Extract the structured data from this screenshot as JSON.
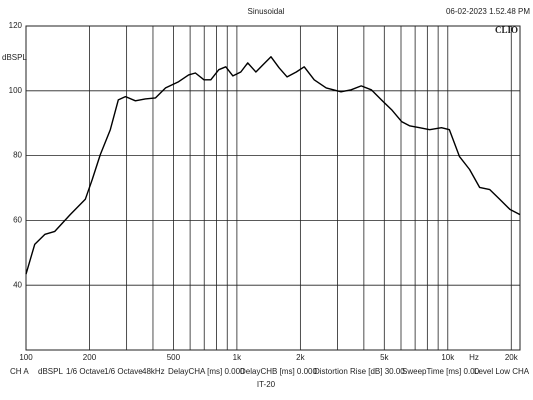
{
  "chart_data": {
    "type": "line",
    "title": "Sinusoidal",
    "timestamp": "06-02-2023 1.52.48 PM",
    "brand": "CLIO",
    "y_label": "dBSPL",
    "x_unit": "Hz",
    "log_x": true,
    "color": "#000000",
    "xlim": [
      100,
      22000
    ],
    "ylim": [
      20,
      120
    ],
    "yticks": [
      40,
      60,
      80,
      100,
      120
    ],
    "xticks": [
      100,
      200,
      500,
      {
        "value": 1000,
        "label": "1k"
      },
      {
        "value": 2000,
        "label": "2k"
      },
      {
        "value": 5000,
        "label": "5k"
      },
      {
        "value": 10000,
        "label": "10k"
      },
      {
        "value": 20000,
        "label": "20k"
      }
    ],
    "xminor_ticks": [
      300,
      400,
      600,
      700,
      800,
      900,
      3000,
      4000,
      6000,
      7000,
      8000,
      9000
    ],
    "x": [
      100,
      110,
      123,
      137,
      162,
      191,
      206,
      225,
      251,
      274,
      296,
      330,
      368,
      411,
      459,
      529,
      590,
      636,
      698,
      752,
      821,
      886,
      957,
      1044,
      1125,
      1230,
      1328,
      1451,
      1585,
      1731,
      1912,
      2086,
      2327,
      2651,
      3117,
      3480,
      3886,
      4339,
      4844,
      5409,
      6040,
      6585,
      7350,
      8206,
      9340,
      10180,
      11370,
      12690,
      14150,
      15820,
      17630,
      19700,
      22000
    ],
    "values": [
      43.4,
      52.6,
      55.7,
      56.6,
      61.8,
      66.5,
      72.6,
      80.3,
      88,
      97.2,
      98.2,
      96.9,
      97.5,
      97.8,
      100.9,
      102.8,
      104.9,
      105.5,
      103.4,
      103.4,
      106.5,
      107.4,
      104.6,
      105.8,
      108.6,
      105.8,
      108,
      110.5,
      107.1,
      104.3,
      105.8,
      107.4,
      103.4,
      100.9,
      99.7,
      100.3,
      101.5,
      100.3,
      97.2,
      94.2,
      90.5,
      89.2,
      88.6,
      88,
      88.6,
      88,
      79.7,
      75.7,
      70.2,
      69.5,
      66.5,
      63.4,
      61.8
    ],
    "footer": [
      "CH A",
      "dBSPL",
      "1/6 Octave",
      "1/6 Octave",
      "48kHz",
      "DelayCHA [ms] 0.000",
      "DelayCHB [ms] 0.000",
      "Distortion Rise [dB] 30.00",
      "SweepTime [ms] 0.00",
      "Level Low CHA"
    ],
    "model": "IT-20"
  }
}
